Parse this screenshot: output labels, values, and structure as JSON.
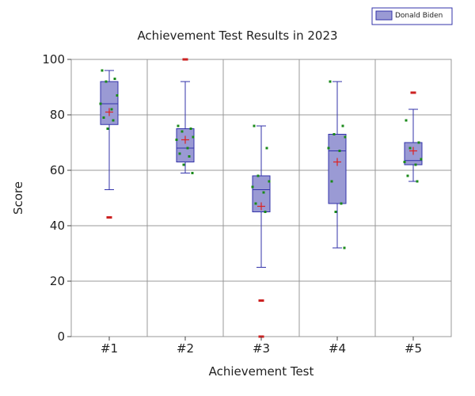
{
  "chart_data": {
    "type": "box",
    "title": "Achievement Test Results in 2023",
    "xlabel": "Achievement Test",
    "ylabel": "Score",
    "ylim": [
      0,
      100
    ],
    "yticks": [
      0,
      20,
      40,
      60,
      80,
      100
    ],
    "grid": true,
    "legend": {
      "position": "top-right",
      "entries": [
        "Donald Biden"
      ]
    },
    "colors": {
      "box_fill": "#9a9ad4",
      "box_stroke": "#3333aa",
      "point": "#1a8a1a",
      "outlier": "#cc2222",
      "mean_marker": "#dd2222",
      "grid": "#999999"
    },
    "categories": [
      "#1",
      "#2",
      "#3",
      "#4",
      "#5"
    ],
    "series": [
      {
        "name": "Donald Biden",
        "boxes": [
          {
            "category": "#1",
            "whisker_low": 53,
            "q1": 76.5,
            "median": 84,
            "q3": 92,
            "whisker_high": 96,
            "mean": 81,
            "outliers": [
              43
            ],
            "points": [
              96,
              93,
              92,
              87,
              84,
              82,
              79,
              78,
              75
            ]
          },
          {
            "category": "#2",
            "whisker_low": 59,
            "q1": 63,
            "median": 68,
            "q3": 75,
            "whisker_high": 92,
            "mean": 71,
            "outliers": [
              100
            ],
            "points": [
              76,
              75,
              74,
              72,
              71,
              68,
              66,
              65,
              62,
              59
            ]
          },
          {
            "category": "#3",
            "whisker_low": 25,
            "q1": 45,
            "median": 53,
            "q3": 58,
            "whisker_high": 76,
            "mean": 47,
            "outliers": [
              13,
              0
            ],
            "points": [
              76,
              68,
              58,
              56,
              54,
              52,
              48,
              45,
              0
            ]
          },
          {
            "category": "#4",
            "whisker_low": 32,
            "q1": 48,
            "median": 67,
            "q3": 73,
            "whisker_high": 92,
            "mean": 63,
            "outliers": [],
            "points": [
              92,
              76,
              73,
              72,
              68,
              67,
              56,
              48,
              45,
              32
            ]
          },
          {
            "category": "#5",
            "whisker_low": 56,
            "q1": 62,
            "median": 63.5,
            "q3": 70,
            "whisker_high": 82,
            "mean": 67,
            "outliers": [
              88
            ],
            "points": [
              78,
              70,
              68,
              64,
              63,
              62,
              58,
              56
            ]
          }
        ]
      }
    ]
  }
}
